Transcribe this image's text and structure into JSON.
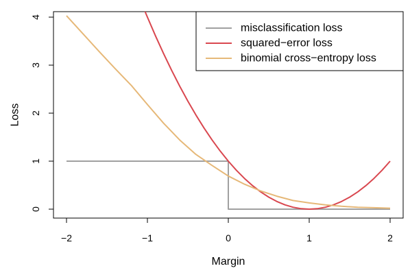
{
  "chart_data": {
    "type": "line",
    "title": "",
    "xlabel": "Margin",
    "ylabel": "Loss",
    "xlim": [
      -2,
      2
    ],
    "ylim": [
      0,
      4
    ],
    "x_ticks": [
      -2,
      -1,
      0,
      1,
      2
    ],
    "y_ticks": [
      0,
      1,
      2,
      3,
      4
    ],
    "x_tick_labels": [
      "−2",
      "−1",
      "0",
      "1",
      "2"
    ],
    "y_tick_labels": [
      "0",
      "1",
      "2",
      "3",
      "4"
    ],
    "grid": false,
    "legend_position": "top-right",
    "series": [
      {
        "name": "misclassification loss",
        "color": "#a0a0a0",
        "x": [
          -2,
          0,
          0,
          2
        ],
        "y": [
          1,
          1,
          0,
          0
        ]
      },
      {
        "name": "squared−error loss",
        "color": "#d9474f",
        "x": [
          -1.05,
          -1.0,
          -0.9,
          -0.8,
          -0.7,
          -0.6,
          -0.5,
          -0.4,
          -0.3,
          -0.2,
          -0.1,
          0.0,
          0.1,
          0.2,
          0.3,
          0.4,
          0.5,
          0.6,
          0.7,
          0.8,
          0.9,
          1.0,
          1.1,
          1.2,
          1.3,
          1.4,
          1.5,
          1.6,
          1.7,
          1.8,
          1.9,
          2.0
        ],
        "y": [
          4.2,
          4.0,
          3.61,
          3.24,
          2.89,
          2.56,
          2.25,
          1.96,
          1.69,
          1.44,
          1.21,
          1.0,
          0.81,
          0.64,
          0.49,
          0.36,
          0.25,
          0.16,
          0.09,
          0.04,
          0.01,
          0.0,
          0.01,
          0.04,
          0.09,
          0.16,
          0.25,
          0.36,
          0.49,
          0.64,
          0.81,
          1.0
        ]
      },
      {
        "name": "binomial cross−entropy loss",
        "color": "#e6b878",
        "x": [
          -2.0,
          -1.8,
          -1.6,
          -1.4,
          -1.2,
          -1.0,
          -0.8,
          -0.6,
          -0.4,
          -0.2,
          0.0,
          0.2,
          0.4,
          0.6,
          0.8,
          1.0,
          1.2,
          1.4,
          1.6,
          1.8,
          2.0
        ],
        "y": [
          4.03,
          3.66,
          3.29,
          2.93,
          2.58,
          2.18,
          1.79,
          1.44,
          1.14,
          0.91,
          0.69,
          0.52,
          0.38,
          0.27,
          0.18,
          0.13,
          0.09,
          0.06,
          0.04,
          0.03,
          0.02
        ]
      }
    ]
  }
}
